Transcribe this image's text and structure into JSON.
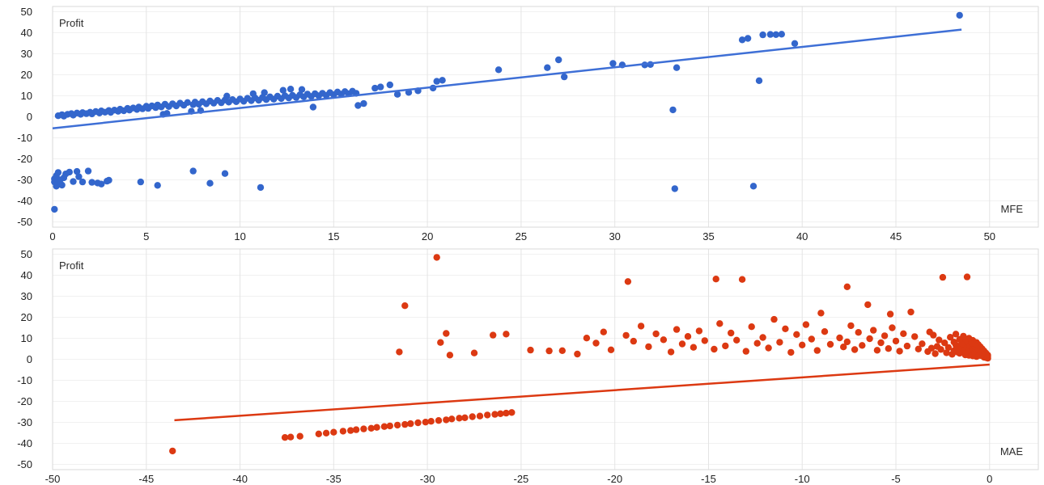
{
  "page": {
    "background": "#ffffff"
  },
  "chart_data": [
    {
      "type": "scatter",
      "id": "profit-vs-mfe",
      "ylabel": "Profit",
      "xlabel": "MFE",
      "color": "#3366cc",
      "trend_color": "#3e6fd6",
      "grid_h": "#f1f1f1",
      "grid_v": "#e4e4e4",
      "border": "#d9d9d9",
      "point_radius": 4.2,
      "xlim": [
        0,
        52.6
      ],
      "ylim": [
        -52.5,
        52.5
      ],
      "xticks": [
        0,
        5,
        10,
        15,
        20,
        25,
        30,
        35,
        40,
        45,
        50
      ],
      "yticks": [
        50,
        40,
        30,
        20,
        10,
        0,
        -10,
        -20,
        -30,
        -40,
        -50
      ],
      "legend": "none",
      "grid": "on",
      "trendline": {
        "x1": 0,
        "y1": -5.5,
        "x2": 48.5,
        "y2": 41.5
      },
      "points": [
        [
          0.3,
          0.5
        ],
        [
          0.5,
          1
        ],
        [
          0.6,
          0.3
        ],
        [
          0.8,
          1.2
        ],
        [
          1,
          1.5
        ],
        [
          1.1,
          0.8
        ],
        [
          1.3,
          1.8
        ],
        [
          1.5,
          1.2
        ],
        [
          1.6,
          2
        ],
        [
          1.8,
          1.5
        ],
        [
          2,
          2.2
        ],
        [
          2.1,
          1.4
        ],
        [
          2.3,
          2.5
        ],
        [
          2.5,
          1.8
        ],
        [
          2.6,
          2.8
        ],
        [
          2.8,
          2.2
        ],
        [
          3,
          3
        ],
        [
          3.1,
          2.1
        ],
        [
          3.3,
          3.2
        ],
        [
          3.5,
          2.6
        ],
        [
          3.6,
          3.6
        ],
        [
          3.8,
          2.9
        ],
        [
          4,
          4
        ],
        [
          4.1,
          3.2
        ],
        [
          4.3,
          4.2
        ],
        [
          4.5,
          3.5
        ],
        [
          4.6,
          4.6
        ],
        [
          4.8,
          3.8
        ],
        [
          5,
          5
        ],
        [
          5.1,
          4
        ],
        [
          5.3,
          5.2
        ],
        [
          5.5,
          4.4
        ],
        [
          5.6,
          5.6
        ],
        [
          5.8,
          4.7
        ],
        [
          5.9,
          1.2
        ],
        [
          6,
          6
        ],
        [
          6.1,
          1.6
        ],
        [
          6.2,
          4.9
        ],
        [
          6.4,
          6.2
        ],
        [
          6.6,
          5.2
        ],
        [
          6.8,
          6.5
        ],
        [
          7,
          5.5
        ],
        [
          7.2,
          6.8
        ],
        [
          7.4,
          2.6
        ],
        [
          7.5,
          5.8
        ],
        [
          7.6,
          7
        ],
        [
          7.8,
          6
        ],
        [
          7.9,
          3
        ],
        [
          8,
          7.2
        ],
        [
          8.2,
          6.2
        ],
        [
          8.4,
          7.5
        ],
        [
          8.6,
          6.5
        ],
        [
          8.8,
          7.8
        ],
        [
          9,
          6.7
        ],
        [
          9.2,
          8
        ],
        [
          9.3,
          9.9
        ],
        [
          9.4,
          7
        ],
        [
          9.6,
          8.2
        ],
        [
          9.8,
          7.2
        ],
        [
          10,
          8.5
        ],
        [
          10.2,
          7.4
        ],
        [
          10.4,
          8.8
        ],
        [
          10.6,
          7.7
        ],
        [
          10.7,
          11
        ],
        [
          10.8,
          9
        ],
        [
          11,
          7.9
        ],
        [
          11.2,
          9.2
        ],
        [
          11.3,
          11.5
        ],
        [
          11.4,
          8.2
        ],
        [
          11.6,
          9.5
        ],
        [
          11.8,
          8.4
        ],
        [
          12,
          9.8
        ],
        [
          12.2,
          8.7
        ],
        [
          12.3,
          12.6
        ],
        [
          12.4,
          10
        ],
        [
          12.6,
          9
        ],
        [
          12.7,
          13.2
        ],
        [
          12.8,
          10.2
        ],
        [
          13,
          9.2
        ],
        [
          13.2,
          10.5
        ],
        [
          13.3,
          13
        ],
        [
          13.4,
          9.5
        ],
        [
          13.6,
          10.8
        ],
        [
          13.8,
          9.7
        ],
        [
          13.9,
          4.6
        ],
        [
          14,
          11
        ],
        [
          14.2,
          10
        ],
        [
          14.4,
          11.2
        ],
        [
          14.6,
          10.2
        ],
        [
          14.8,
          11.5
        ],
        [
          15,
          10.5
        ],
        [
          15.2,
          11.8
        ],
        [
          15.4,
          10.8
        ],
        [
          15.6,
          12
        ],
        [
          15.8,
          11
        ],
        [
          16,
          12.2
        ],
        [
          16.2,
          11.2
        ],
        [
          16.3,
          5.4
        ],
        [
          16.6,
          6.3
        ],
        [
          17.2,
          13.6
        ],
        [
          17.5,
          14.2
        ],
        [
          18,
          15.2
        ],
        [
          18.4,
          10.7
        ],
        [
          19,
          11.6
        ],
        [
          19.5,
          12.4
        ],
        [
          20.3,
          13.7
        ],
        [
          20.5,
          16.9
        ],
        [
          20.8,
          17.4
        ],
        [
          23.8,
          22.4
        ],
        [
          26.4,
          23.4
        ],
        [
          27,
          27.1
        ],
        [
          27.3,
          19
        ],
        [
          29.9,
          25.4
        ],
        [
          30.4,
          24.7
        ],
        [
          31.6,
          24.7
        ],
        [
          31.9,
          24.9
        ],
        [
          33.1,
          3.3
        ],
        [
          33.2,
          -34.2
        ],
        [
          33.3,
          23.4
        ],
        [
          36.8,
          36.6
        ],
        [
          37.1,
          37.3
        ],
        [
          37.4,
          -33
        ],
        [
          37.7,
          17.2
        ],
        [
          37.9,
          39
        ],
        [
          38.3,
          39.2
        ],
        [
          38.6,
          39.1
        ],
        [
          38.9,
          39.3
        ],
        [
          39.6,
          34.9
        ],
        [
          48.4,
          48.3
        ],
        [
          0.1,
          -44
        ],
        [
          0.1,
          -31
        ],
        [
          0.1,
          -29.5
        ],
        [
          0.2,
          -33
        ],
        [
          0.2,
          -30.5
        ],
        [
          0.2,
          -28
        ],
        [
          0.3,
          -31.5
        ],
        [
          0.3,
          -26.5
        ],
        [
          0.4,
          -30
        ],
        [
          0.5,
          -32.5
        ],
        [
          0.6,
          -29
        ],
        [
          0.7,
          -27.2
        ],
        [
          0.9,
          -26.3
        ],
        [
          1.1,
          -30.8
        ],
        [
          1.3,
          -26
        ],
        [
          1.4,
          -28.5
        ],
        [
          1.6,
          -31
        ],
        [
          1.9,
          -25.8
        ],
        [
          2.1,
          -31.2
        ],
        [
          2.4,
          -31.5
        ],
        [
          2.6,
          -32
        ],
        [
          2.9,
          -30.6
        ],
        [
          3,
          -30.2
        ],
        [
          4.7,
          -31
        ],
        [
          5.6,
          -32.6
        ],
        [
          7.5,
          -25.8
        ],
        [
          8.4,
          -31.6
        ],
        [
          9.2,
          -27
        ],
        [
          11.1,
          -33.6
        ]
      ]
    },
    {
      "type": "scatter",
      "id": "profit-vs-mae",
      "ylabel": "Profit",
      "xlabel": "MAE",
      "color": "#dc3912",
      "trend_color": "#dc3912",
      "grid_h": "#f1f1f1",
      "grid_v": "#e4e4e4",
      "border": "#d9d9d9",
      "point_radius": 4.2,
      "xlim": [
        -50,
        2.6
      ],
      "ylim": [
        -52.5,
        52.5
      ],
      "xticks": [
        -50,
        -45,
        -40,
        -35,
        -30,
        -25,
        -20,
        -15,
        -10,
        -5,
        0
      ],
      "yticks": [
        50,
        40,
        30,
        20,
        10,
        0,
        -10,
        -20,
        -30,
        -40,
        -50
      ],
      "legend": "none",
      "grid": "on",
      "trendline": {
        "x1": -43.5,
        "y1": -29,
        "x2": 0,
        "y2": -2.5
      },
      "points": [
        [
          -0.1,
          0.5
        ],
        [
          -0.1,
          1.2
        ],
        [
          -0.1,
          2
        ],
        [
          -0.2,
          0.8
        ],
        [
          -0.2,
          3
        ],
        [
          -0.2,
          1.5
        ],
        [
          -0.3,
          2.5
        ],
        [
          -0.3,
          4
        ],
        [
          -0.3,
          1
        ],
        [
          -0.4,
          3.5
        ],
        [
          -0.4,
          5
        ],
        [
          -0.4,
          2.2
        ],
        [
          -0.5,
          1.8
        ],
        [
          -0.5,
          4.5
        ],
        [
          -0.5,
          6
        ],
        [
          -0.6,
          2.8
        ],
        [
          -0.6,
          7
        ],
        [
          -0.6,
          3.8
        ],
        [
          -0.7,
          1.3
        ],
        [
          -0.7,
          5.5
        ],
        [
          -0.7,
          8
        ],
        [
          -0.8,
          2.3
        ],
        [
          -0.8,
          6.5
        ],
        [
          -0.8,
          4.2
        ],
        [
          -0.9,
          1.6
        ],
        [
          -0.9,
          9
        ],
        [
          -0.9,
          3.2
        ],
        [
          -1,
          5
        ],
        [
          -1,
          7.5
        ],
        [
          -1,
          2.6
        ],
        [
          -1.1,
          4.8
        ],
        [
          -1.1,
          10
        ],
        [
          -1.1,
          1.9
        ],
        [
          -1.2,
          6.2
        ],
        [
          -1.2,
          3.6
        ],
        [
          -1.2,
          39.2
        ],
        [
          -1.3,
          8.5
        ],
        [
          -1.3,
          2.1
        ],
        [
          -1.4,
          5.8
        ],
        [
          -1.4,
          11
        ],
        [
          -1.5,
          4.4
        ],
        [
          -1.5,
          7.2
        ],
        [
          -1.6,
          2.9
        ],
        [
          -1.6,
          9.5
        ],
        [
          -1.7,
          5.2
        ],
        [
          -1.7,
          3.4
        ],
        [
          -1.8,
          6.8
        ],
        [
          -1.8,
          12
        ],
        [
          -1.9,
          4.1
        ],
        [
          -1.9,
          8.2
        ],
        [
          -2,
          2.4
        ],
        [
          -2.1,
          10.5
        ],
        [
          -2.2,
          5.6
        ],
        [
          -2.3,
          3.1
        ],
        [
          -2.4,
          7.8
        ],
        [
          -2.5,
          39
        ],
        [
          -2.6,
          4.7
        ],
        [
          -2.7,
          9.2
        ],
        [
          -2.8,
          6.1
        ],
        [
          -2.9,
          2.7
        ],
        [
          -3,
          11.5
        ],
        [
          -3.1,
          5.3
        ],
        [
          -3.2,
          13
        ],
        [
          -3.3,
          3.7
        ],
        [
          -3.6,
          7.4
        ],
        [
          -3.8,
          4.9
        ],
        [
          -4,
          10.8
        ],
        [
          -4.2,
          22.5
        ],
        [
          -4.4,
          6.3
        ],
        [
          -4.6,
          12.2
        ],
        [
          -4.8,
          3.9
        ],
        [
          -5,
          8.7
        ],
        [
          -5.2,
          15
        ],
        [
          -5.3,
          21.5
        ],
        [
          -5.4,
          5.1
        ],
        [
          -5.6,
          11.2
        ],
        [
          -5.8,
          7.9
        ],
        [
          -6,
          4.3
        ],
        [
          -6.2,
          13.8
        ],
        [
          -6.4,
          9.8
        ],
        [
          -6.5,
          26
        ],
        [
          -6.8,
          6.6
        ],
        [
          -7,
          12.8
        ],
        [
          -7.2,
          4.6
        ],
        [
          -7.4,
          16
        ],
        [
          -7.6,
          34.5
        ],
        [
          -7.6,
          8.3
        ],
        [
          -7.8,
          5.9
        ],
        [
          -8,
          10.2
        ],
        [
          -8.5,
          7.1
        ],
        [
          -8.8,
          13.2
        ],
        [
          -9,
          22
        ],
        [
          -9.2,
          4.2
        ],
        [
          -9.5,
          9.6
        ],
        [
          -9.8,
          16.5
        ],
        [
          -10,
          6.8
        ],
        [
          -10.3,
          11.8
        ],
        [
          -10.6,
          3.3
        ],
        [
          -10.9,
          14.5
        ],
        [
          -11.2,
          8.1
        ],
        [
          -11.5,
          19
        ],
        [
          -11.8,
          5.4
        ],
        [
          -12.1,
          10.4
        ],
        [
          -12.4,
          7.6
        ],
        [
          -12.7,
          15.5
        ],
        [
          -13,
          3.8
        ],
        [
          -13.2,
          38
        ],
        [
          -13.5,
          9.1
        ],
        [
          -13.8,
          12.5
        ],
        [
          -14.1,
          6.4
        ],
        [
          -14.4,
          17
        ],
        [
          -14.6,
          38.2
        ],
        [
          -14.7,
          4.8
        ],
        [
          -15.2,
          8.9
        ],
        [
          -15.5,
          13.5
        ],
        [
          -15.8,
          5.7
        ],
        [
          -16.1,
          10.9
        ],
        [
          -16.4,
          7.3
        ],
        [
          -16.7,
          14.2
        ],
        [
          -17,
          3.5
        ],
        [
          -17.4,
          9.3
        ],
        [
          -17.8,
          12.1
        ],
        [
          -18.2,
          6
        ],
        [
          -18.6,
          15.8
        ],
        [
          -19,
          8.6
        ],
        [
          -19.3,
          37
        ],
        [
          -19.4,
          11.4
        ],
        [
          -20.2,
          4.5
        ],
        [
          -20.6,
          13
        ],
        [
          -21,
          7.7
        ],
        [
          -21.5,
          10.1
        ],
        [
          -22,
          2.5
        ],
        [
          -22.8,
          4.1
        ],
        [
          -23.5,
          4
        ],
        [
          -24.5,
          4.4
        ],
        [
          -25.8,
          12
        ],
        [
          -26.5,
          11.5
        ],
        [
          -27.5,
          3
        ],
        [
          -28.8,
          2
        ],
        [
          -29,
          12.3
        ],
        [
          -29.3,
          8
        ],
        [
          -29.5,
          48.5
        ],
        [
          -31.2,
          25.5
        ],
        [
          -31.5,
          3.5
        ],
        [
          -25.5,
          -25.3
        ],
        [
          -25.8,
          -25.6
        ],
        [
          -26.1,
          -25.9
        ],
        [
          -26.4,
          -26.2
        ],
        [
          -26.8,
          -26.5
        ],
        [
          -27.2,
          -27
        ],
        [
          -27.6,
          -27.3
        ],
        [
          -28,
          -27.8
        ],
        [
          -28.3,
          -28
        ],
        [
          -28.7,
          -28.4
        ],
        [
          -29,
          -28.8
        ],
        [
          -29.4,
          -29.1
        ],
        [
          -29.8,
          -29.5
        ],
        [
          -30.1,
          -29.9
        ],
        [
          -30.5,
          -30.2
        ],
        [
          -30.9,
          -30.6
        ],
        [
          -31.2,
          -31
        ],
        [
          -31.6,
          -31.3
        ],
        [
          -32,
          -31.7
        ],
        [
          -32.3,
          -32
        ],
        [
          -32.7,
          -32.4
        ],
        [
          -33,
          -32.8
        ],
        [
          -33.4,
          -33.1
        ],
        [
          -33.8,
          -33.5
        ],
        [
          -34.1,
          -33.9
        ],
        [
          -34.5,
          -34.2
        ],
        [
          -35,
          -34.7
        ],
        [
          -35.4,
          -35.1
        ],
        [
          -35.8,
          -35.5
        ],
        [
          -36.8,
          -36.6
        ],
        [
          -37.3,
          -37
        ],
        [
          -37.6,
          -37.2
        ],
        [
          -43.6,
          -43.6
        ]
      ]
    }
  ]
}
